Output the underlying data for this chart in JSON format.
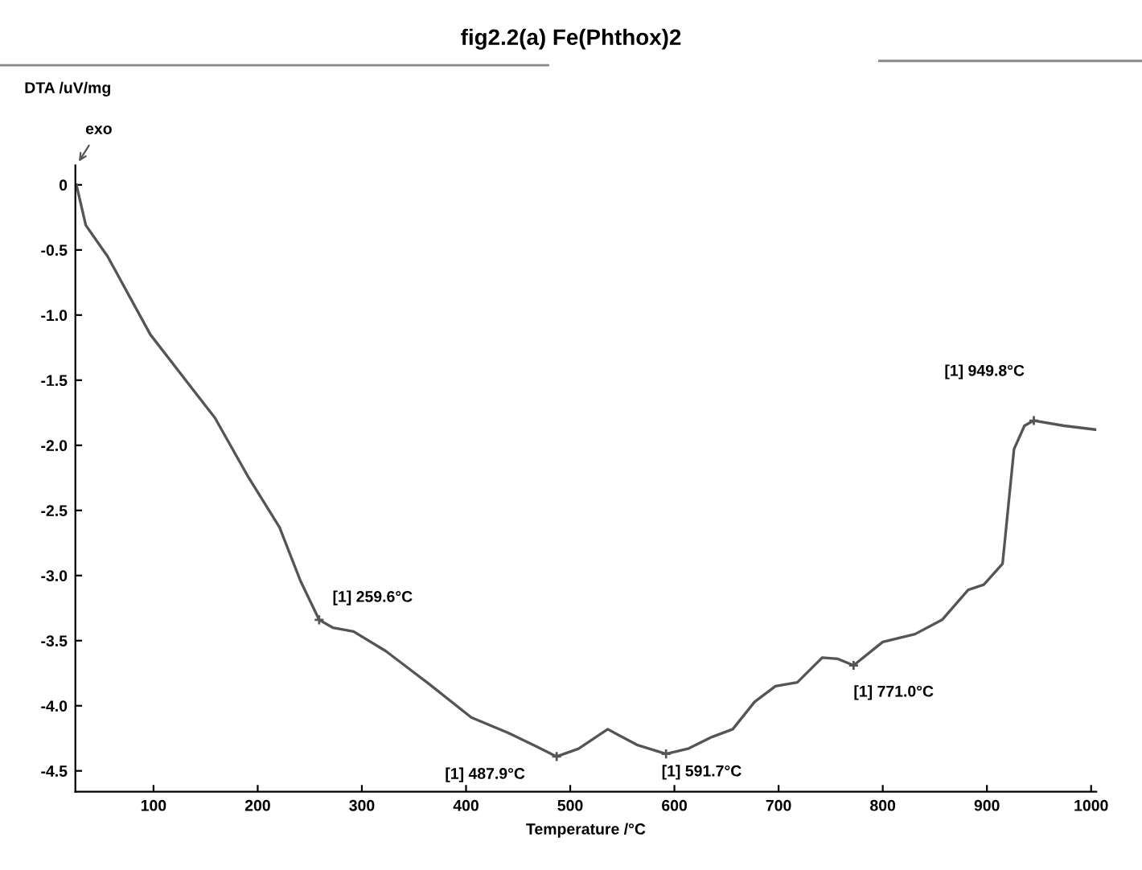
{
  "chart_data": {
    "type": "line",
    "title": "fig2.2(a) Fe(Phthox)2",
    "xlabel": "Temperature /°C",
    "ylabel": "DTA /uV/mg",
    "x": [
      26,
      35,
      56,
      97,
      128,
      159,
      190,
      221,
      241,
      259,
      272,
      292,
      323,
      364,
      405,
      441,
      467,
      487,
      508,
      536,
      564,
      592,
      613,
      636,
      656,
      677,
      697,
      718,
      742,
      757,
      772,
      800,
      831,
      857,
      882,
      897,
      915,
      920,
      926,
      936,
      945,
      974,
      1005
    ],
    "series": [
      {
        "color": "#555555",
        "values": [
          0,
          -0.31,
          -0.55,
          -1.15,
          -1.47,
          -1.79,
          -2.23,
          -2.63,
          -3.04,
          -3.34,
          -3.4,
          -3.43,
          -3.58,
          -3.83,
          -4.09,
          -4.21,
          -4.31,
          -4.39,
          -4.33,
          -4.18,
          -4.3,
          -4.37,
          -4.33,
          -4.24,
          -4.18,
          -3.97,
          -3.85,
          -3.82,
          -3.63,
          -3.64,
          -3.69,
          -3.51,
          -3.45,
          -3.34,
          -3.11,
          -3.07,
          -2.91,
          -2.51,
          -2.03,
          -1.85,
          -1.81,
          -1.85,
          -1.88
        ]
      }
    ],
    "xlim": [
      25,
      1005
    ],
    "ylim": [
      -4.66,
      0.15
    ],
    "xticks": [
      100,
      200,
      300,
      400,
      500,
      600,
      700,
      800,
      900,
      1000
    ],
    "yticks": [
      0,
      {
        "value": -0.5,
        "label": "-0.5"
      },
      {
        "value": -1.0,
        "label": "-1.0"
      },
      {
        "value": -1.5,
        "label": "-1.5"
      },
      {
        "value": -2.0,
        "label": "-2.0"
      },
      {
        "value": -2.5,
        "label": "-2.5"
      },
      {
        "value": -3.0,
        "label": "-3.0"
      },
      {
        "value": -3.5,
        "label": "-3.5"
      },
      {
        "value": -4.0,
        "label": "-4.0"
      },
      {
        "value": -4.5,
        "label": "-4.5"
      }
    ],
    "grid": false,
    "marker": "none",
    "line_style": "solid",
    "annotations": [
      {
        "text": "[1] 259.6°C",
        "x": 259,
        "y": -3.34
      },
      {
        "text": "[1] 487.9°C",
        "x": 487,
        "y": -4.39
      },
      {
        "text": "[1] 591.7°C",
        "x": 592,
        "y": -4.37
      },
      {
        "text": "[1] 771.0°C",
        "x": 772,
        "y": -3.69
      },
      {
        "text": "[1] 949.8°C",
        "x": 945,
        "y": -1.81
      },
      "exo"
    ]
  }
}
